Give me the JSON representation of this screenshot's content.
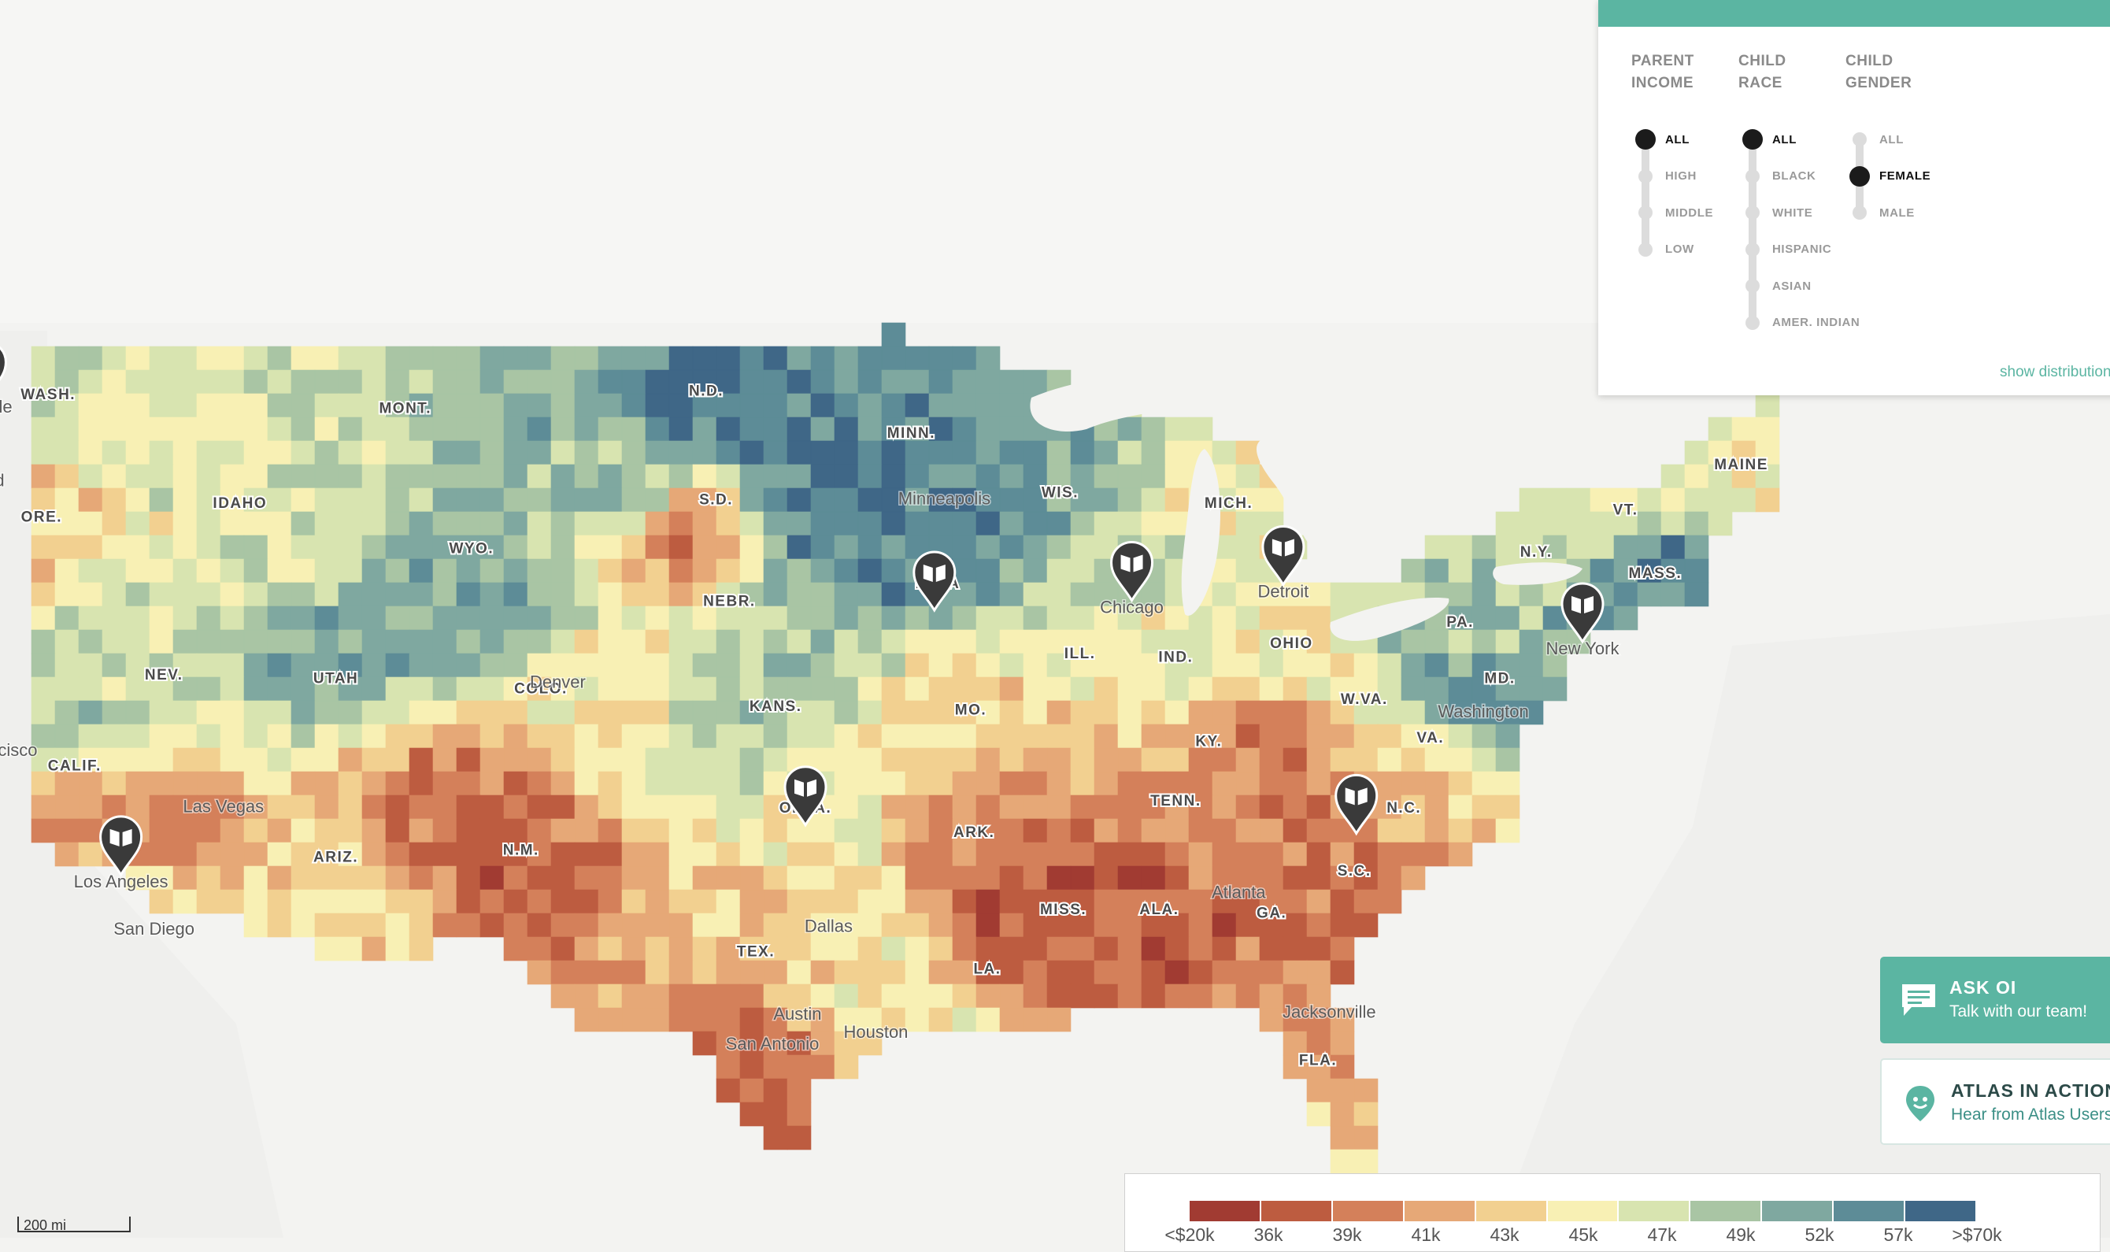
{
  "filters": {
    "columns": [
      {
        "heading_line1": "PARENT",
        "heading_line2": "INCOME",
        "options": [
          "ALL",
          "HIGH",
          "MIDDLE",
          "LOW"
        ],
        "selected": 0
      },
      {
        "heading_line1": "CHILD",
        "heading_line2": "RACE",
        "options": [
          "ALL",
          "BLACK",
          "WHITE",
          "HISPANIC",
          "ASIAN",
          "AMER. INDIAN"
        ],
        "selected": 0
      },
      {
        "heading_line1": "CHILD",
        "heading_line2": "GENDER",
        "options": [
          "ALL",
          "FEMALE",
          "MALE"
        ],
        "selected": 1
      }
    ],
    "show_distribution": "show distribution"
  },
  "ask_oi": {
    "title": "ASK OI",
    "subtitle": "Talk with our team!"
  },
  "atlas_in_action": {
    "title": "ATLAS IN ACTION",
    "subtitle": "Hear from Atlas Users"
  },
  "legend": {
    "labels": [
      "<$20k",
      "36k",
      "39k",
      "41k",
      "43k",
      "45k",
      "47k",
      "49k",
      "52k",
      "57k",
      ">$70k"
    ],
    "colors": [
      "#a13b32",
      "#bd5c40",
      "#d4805a",
      "#e6a877",
      "#f2d090",
      "#f8f0b4",
      "#d8e4b0",
      "#a9c5a4",
      "#7fa8a0",
      "#5d8c97",
      "#3f6787"
    ]
  },
  "scale_bar": {
    "label": "200 mi"
  },
  "states": [
    {
      "label": "WASH.",
      "lon": -120.4,
      "lat": 47.4
    },
    {
      "label": "ORE.",
      "lon": -120.6,
      "lat": 43.9
    },
    {
      "label": "CALIF.",
      "lon": -119.6,
      "lat": 36.8
    },
    {
      "label": "IDAHO",
      "lon": -114.6,
      "lat": 44.3
    },
    {
      "label": "NEV.",
      "lon": -116.9,
      "lat": 39.4
    },
    {
      "label": "MONT.",
      "lon": -109.6,
      "lat": 47.0
    },
    {
      "label": "WYO.",
      "lon": -107.6,
      "lat": 43.0
    },
    {
      "label": "UTAH",
      "lon": -111.7,
      "lat": 39.3
    },
    {
      "label": "COLO.",
      "lon": -105.5,
      "lat": 39.0
    },
    {
      "label": "ARIZ.",
      "lon": -111.7,
      "lat": 34.2
    },
    {
      "label": "N.M.",
      "lon": -106.1,
      "lat": 34.4
    },
    {
      "label": "N.D.",
      "lon": -100.5,
      "lat": 47.5
    },
    {
      "label": "S.D.",
      "lon": -100.2,
      "lat": 44.4
    },
    {
      "label": "NEBR.",
      "lon": -99.8,
      "lat": 41.5
    },
    {
      "label": "KANS.",
      "lon": -98.4,
      "lat": 38.5
    },
    {
      "label": "OKLA.",
      "lon": -97.5,
      "lat": 35.6
    },
    {
      "label": "TEX.",
      "lon": -99.0,
      "lat": 31.5
    },
    {
      "label": "MINN.",
      "lon": -94.3,
      "lat": 46.3
    },
    {
      "label": "IOWA",
      "lon": -93.5,
      "lat": 42.0
    },
    {
      "label": "MO.",
      "lon": -92.5,
      "lat": 38.4
    },
    {
      "label": "ARK.",
      "lon": -92.4,
      "lat": 34.9
    },
    {
      "label": "LA.",
      "lon": -92.0,
      "lat": 31.0
    },
    {
      "label": "WIS.",
      "lon": -89.8,
      "lat": 44.6
    },
    {
      "label": "ILL.",
      "lon": -89.2,
      "lat": 40.0
    },
    {
      "label": "MISS.",
      "lon": -89.7,
      "lat": 32.7
    },
    {
      "label": "MICH.",
      "lon": -84.7,
      "lat": 44.3
    },
    {
      "label": "IND.",
      "lon": -86.3,
      "lat": 39.9
    },
    {
      "label": "KY.",
      "lon": -85.3,
      "lat": 37.5
    },
    {
      "label": "TENN.",
      "lon": -86.3,
      "lat": 35.8
    },
    {
      "label": "ALA.",
      "lon": -86.8,
      "lat": 32.7
    },
    {
      "label": "OHIO",
      "lon": -82.8,
      "lat": 40.3
    },
    {
      "label": "GA.",
      "lon": -83.4,
      "lat": 32.6
    },
    {
      "label": "FLA.",
      "lon": -82.0,
      "lat": 28.4
    },
    {
      "label": "S.C.",
      "lon": -80.9,
      "lat": 33.8
    },
    {
      "label": "N.C.",
      "lon": -79.4,
      "lat": 35.6
    },
    {
      "label": "VA.",
      "lon": -78.6,
      "lat": 37.6
    },
    {
      "label": "W.VA.",
      "lon": -80.6,
      "lat": 38.7
    },
    {
      "label": "PA.",
      "lon": -77.7,
      "lat": 40.9
    },
    {
      "label": "N.Y.",
      "lon": -75.4,
      "lat": 42.9
    },
    {
      "label": "MD.",
      "lon": -76.5,
      "lat": 39.3
    },
    {
      "label": "VT.",
      "lon": -72.7,
      "lat": 44.1
    },
    {
      "label": "MASS.",
      "lon": -71.8,
      "lat": 42.3
    },
    {
      "label": "MAINE",
      "lon": -69.2,
      "lat": 45.4
    }
  ],
  "cities": [
    {
      "label": "Seattle",
      "lon": -122.3,
      "lat": 47.6
    },
    {
      "label": "Portland",
      "lon": -122.7,
      "lat": 45.5
    },
    {
      "label": "San Francisco",
      "lon": -122.4,
      "lat": 37.8
    },
    {
      "label": "Los Angeles",
      "lon": -118.2,
      "lat": 34.05
    },
    {
      "label": "San Diego",
      "lon": -117.2,
      "lat": 32.7
    },
    {
      "label": "Las Vegas",
      "lon": -115.1,
      "lat": 36.2
    },
    {
      "label": "Denver",
      "lon": -104.99,
      "lat": 39.74
    },
    {
      "label": "Minneapolis",
      "lon": -93.3,
      "lat": 44.98
    },
    {
      "label": "Chicago",
      "lon": -87.63,
      "lat": 41.88
    },
    {
      "label": "Detroit",
      "lon": -83.05,
      "lat": 42.33
    },
    {
      "label": "New York",
      "lon": -74.0,
      "lat": 40.7
    },
    {
      "label": "Washington",
      "lon": -77.0,
      "lat": 38.9
    },
    {
      "label": "Atlanta",
      "lon": -84.4,
      "lat": 33.75
    },
    {
      "label": "Dallas",
      "lon": -96.8,
      "lat": 32.78
    },
    {
      "label": "Austin",
      "lon": -97.74,
      "lat": 30.27
    },
    {
      "label": "Houston",
      "lon": -95.37,
      "lat": 29.76
    },
    {
      "label": "San Antonio",
      "lon": -98.5,
      "lat": 29.42
    },
    {
      "label": "Jacksonville",
      "lon": -81.66,
      "lat": 30.33
    }
  ],
  "story_markers": [
    {
      "lon": -122.3,
      "lat": 47.6
    },
    {
      "lon": -118.2,
      "lat": 34.05
    },
    {
      "lon": -93.6,
      "lat": 41.6
    },
    {
      "lon": -87.63,
      "lat": 41.88
    },
    {
      "lon": -83.05,
      "lat": 42.33
    },
    {
      "lon": -74.0,
      "lat": 40.7
    },
    {
      "lon": -97.5,
      "lat": 35.47
    },
    {
      "lon": -80.84,
      "lat": 35.23
    }
  ]
}
